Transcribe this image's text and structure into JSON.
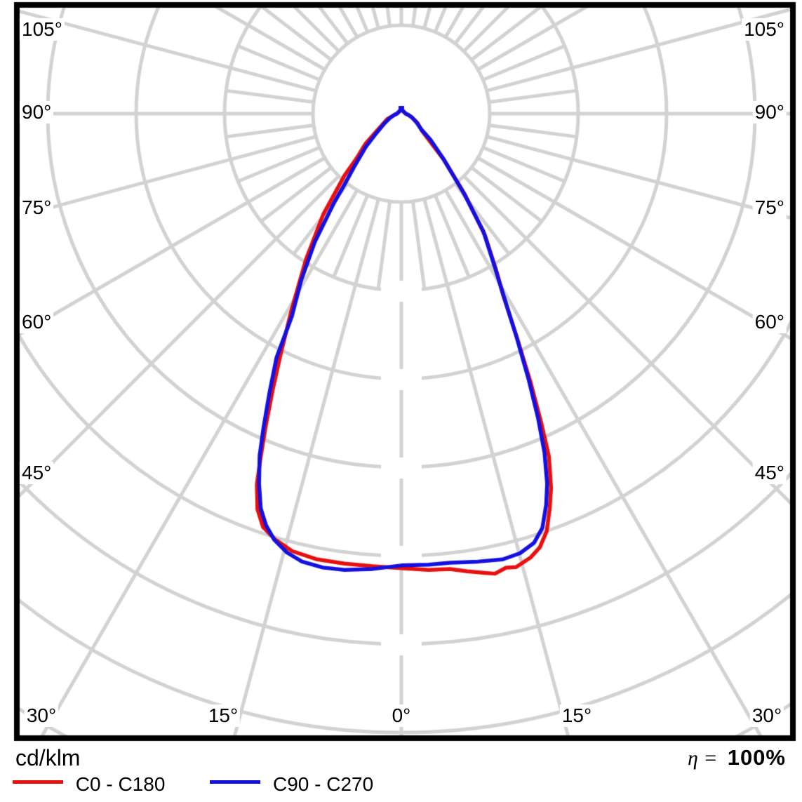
{
  "chart_data": {
    "type": "line",
    "coordinate_system": "polar",
    "description": "Luminous intensity distribution curve (polar photometric diagram). 0 deg points to nadir (bottom), gamma angles increase to +/-105 deg toward the top. Radius = intensity in cd/klm; radial grid rings are unlabeled (blank value boxes on the 0 deg axis). Curve radius values below are given in grid-ring units.",
    "unit_label": "cd/klm",
    "efficiency_label": "η =",
    "efficiency_value": "100%",
    "legend_position": "bottom-left",
    "grid": {
      "rings_visible": 8,
      "ring_values_labeled": false,
      "major_spoke_step_deg": 15,
      "minor_spoke_step_deg": 7.5,
      "minor_spokes_extent": "first ring annulus only",
      "inner_blank_disk_rings": 1,
      "grid_color": "#d2d2d2"
    },
    "angle_tick_labels": {
      "left_side": [
        "105°",
        "90°",
        "75°",
        "60°",
        "45°"
      ],
      "right_side": [
        "105°",
        "90°",
        "75°",
        "60°",
        "45°"
      ],
      "bottom": [
        "30°",
        "15°",
        "0°",
        "15°",
        "30°"
      ]
    },
    "series": [
      {
        "name": "C0 - C180",
        "color": "#e8100e",
        "points_gamma_deg_vs_rings": [
          [
            -90,
            0.05
          ],
          [
            -80,
            0.08
          ],
          [
            -69,
            0.17
          ],
          [
            -60,
            0.25
          ],
          [
            -50,
            0.53
          ],
          [
            -45,
            0.72
          ],
          [
            -42.6,
            0.95
          ],
          [
            -37.8,
            1.44
          ],
          [
            -33.2,
            1.97
          ],
          [
            -29.3,
            2.53
          ],
          [
            -26.8,
            3.01
          ],
          [
            -25,
            3.44
          ],
          [
            -23.4,
            3.87
          ],
          [
            -22.3,
            4.19
          ],
          [
            -21.3,
            4.5
          ],
          [
            -20,
            4.76
          ],
          [
            -18.5,
            4.93
          ],
          [
            -16.6,
            5.02
          ],
          [
            -14,
            5.1
          ],
          [
            -10.8,
            5.13
          ],
          [
            -7.2,
            5.13
          ],
          [
            -3.6,
            5.13
          ],
          [
            0,
            5.14
          ],
          [
            3.4,
            5.17
          ],
          [
            6.1,
            5.18
          ],
          [
            8.2,
            5.23
          ],
          [
            10.3,
            5.28
          ],
          [
            11.5,
            5.31
          ],
          [
            13,
            5.27
          ],
          [
            14.2,
            5.29
          ],
          [
            16.2,
            5.23
          ],
          [
            17.7,
            5.15
          ],
          [
            19.2,
            5.0
          ],
          [
            20.6,
            4.77
          ],
          [
            21.8,
            4.56
          ],
          [
            23.3,
            4.22
          ],
          [
            24.4,
            3.82
          ],
          [
            25.7,
            3.37
          ],
          [
            27.2,
            2.88
          ],
          [
            29.3,
            2.35
          ],
          [
            31.2,
            2.07
          ],
          [
            34.5,
            1.67
          ],
          [
            38.1,
            1.17
          ],
          [
            42.7,
            0.71
          ],
          [
            50.4,
            0.3
          ],
          [
            60,
            0.21
          ],
          [
            70,
            0.13
          ],
          [
            80,
            0.08
          ],
          [
            90,
            0.05
          ]
        ]
      },
      {
        "name": "C90 - C270",
        "color": "#1410e0",
        "points_gamma_deg_vs_rings": [
          [
            -90,
            0.05
          ],
          [
            -80,
            0.08
          ],
          [
            -69,
            0.14
          ],
          [
            -60,
            0.22
          ],
          [
            -52,
            0.36
          ],
          [
            -47,
            0.55
          ],
          [
            -42,
            0.78
          ],
          [
            -39,
            1.0
          ],
          [
            -37,
            1.27
          ],
          [
            -34,
            1.75
          ],
          [
            -31,
            2.2
          ],
          [
            -28.4,
            2.6
          ],
          [
            -27.1,
            3.1
          ],
          [
            -25.3,
            3.49
          ],
          [
            -23.7,
            3.88
          ],
          [
            -22.5,
            4.19
          ],
          [
            -21,
            4.49
          ],
          [
            -19.6,
            4.74
          ],
          [
            -18.2,
            4.9
          ],
          [
            -16.6,
            5.03
          ],
          [
            -14.6,
            5.13
          ],
          [
            -12.5,
            5.19
          ],
          [
            -9.8,
            5.21
          ],
          [
            -7.1,
            5.2
          ],
          [
            -3.6,
            5.16
          ],
          [
            0,
            5.11
          ],
          [
            3.5,
            5.11
          ],
          [
            6.2,
            5.11
          ],
          [
            9.7,
            5.14
          ],
          [
            12.8,
            5.17
          ],
          [
            15.1,
            5.15
          ],
          [
            17.2,
            5.08
          ],
          [
            18.8,
            4.95
          ],
          [
            20.3,
            4.72
          ],
          [
            21.5,
            4.5
          ],
          [
            22.9,
            4.16
          ],
          [
            24.2,
            3.77
          ],
          [
            25.6,
            3.33
          ],
          [
            27.3,
            2.84
          ],
          [
            29.6,
            2.31
          ],
          [
            31.3,
            2.04
          ],
          [
            34.9,
            1.62
          ],
          [
            38.2,
            1.14
          ],
          [
            43.1,
            0.69
          ],
          [
            48,
            0.45
          ],
          [
            51.6,
            0.29
          ],
          [
            60,
            0.2
          ],
          [
            70,
            0.13
          ],
          [
            80,
            0.08
          ],
          [
            90,
            0.05
          ]
        ]
      }
    ]
  }
}
